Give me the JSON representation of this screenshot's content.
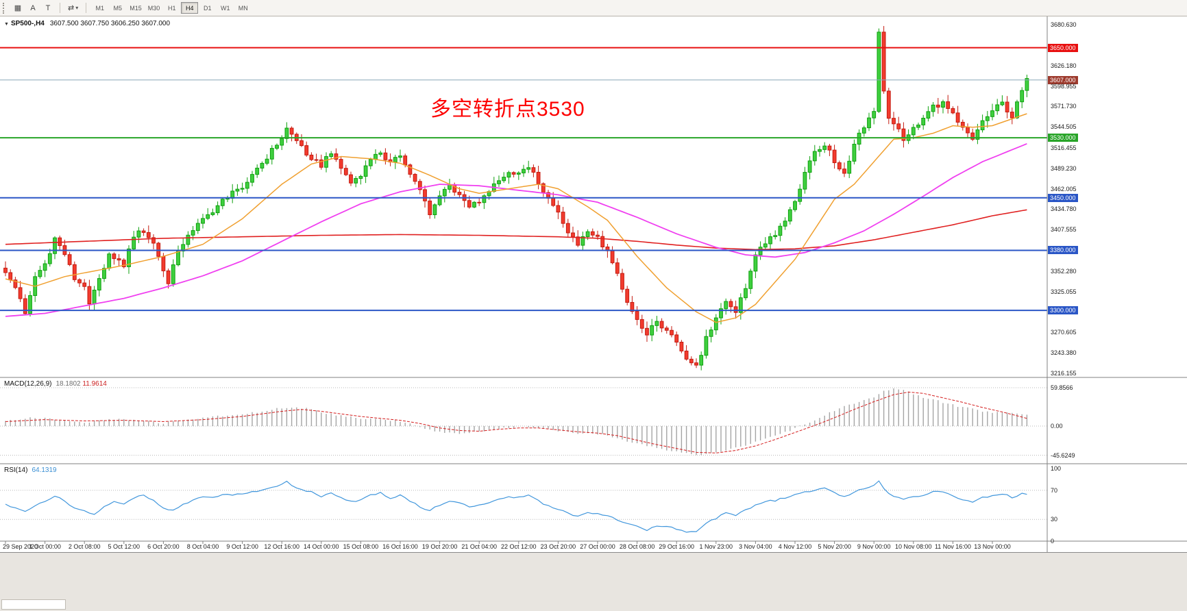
{
  "toolbar": {
    "icons": [
      {
        "name": "chart-window-icon",
        "glyph": "▦"
      },
      {
        "name": "text-tool-icon",
        "glyph": "A"
      },
      {
        "name": "label-tool-icon",
        "glyph": "T"
      },
      {
        "name": "cycles-tool-icon",
        "glyph": "⇄"
      },
      {
        "name": "dropdown-caret-icon",
        "glyph": "▾"
      }
    ],
    "timeframes": [
      "M1",
      "M5",
      "M15",
      "M30",
      "H1",
      "H4",
      "D1",
      "W1",
      "MN"
    ],
    "active_timeframe": "H4"
  },
  "main_chart": {
    "dropdown_glyph": "▼",
    "symbol_period": "SP500-,H4",
    "ohlc": "3607.500 3607.750 3606.250 3607.000",
    "annotation": "多空转折点3530"
  },
  "price_axis": {
    "labels": [
      "3680.630",
      "3626.180",
      "3598.955",
      "3571.730",
      "3544.505",
      "3516.455",
      "3489.230",
      "3462.005",
      "3434.780",
      "3407.555",
      "3352.280",
      "3325.055",
      "3270.605",
      "3243.380",
      "3216.155"
    ]
  },
  "levels": [
    {
      "price": 3650.0,
      "label": "3650.000",
      "color": "#e81010"
    },
    {
      "price": 3530.0,
      "label": "3530.000",
      "color": "#28a428"
    },
    {
      "price": 3450.0,
      "label": "3450.000",
      "color": "#2a56c6"
    },
    {
      "price": 3380.0,
      "label": "3380.000",
      "color": "#2a56c6"
    },
    {
      "price": 3300.0,
      "label": "3300.000",
      "color": "#2a56c6"
    }
  ],
  "current_price_line": {
    "price": 3607.0,
    "label": "3607.000",
    "line_color": "#8aa8b8",
    "badge_color": "#9e3b2e"
  },
  "time_axis": [
    "29 Sep 2020",
    "1 Oct 00:00",
    "2 Oct 08:00",
    "5 Oct 12:00",
    "6 Oct 20:00",
    "8 Oct 04:00",
    "9 Oct 12:00",
    "12 Oct 16:00",
    "14 Oct 00:00",
    "15 Oct 08:00",
    "16 Oct 16:00",
    "19 Oct 20:00",
    "21 Oct 04:00",
    "22 Oct 12:00",
    "23 Oct 20:00",
    "27 Oct 00:00",
    "28 Oct 08:00",
    "29 Oct 16:00",
    "1 Nov 23:00",
    "3 Nov 04:00",
    "4 Nov 12:00",
    "5 Nov 20:00",
    "9 Nov 00:00",
    "10 Nov 08:00",
    "11 Nov 16:00",
    "13 Nov 00:00"
  ],
  "macd": {
    "label": "MACD(12,26,9)",
    "value_main": "18.1802",
    "value_signal": "11.9614",
    "axis": [
      "59.8566",
      "0.00",
      "-45.6249"
    ],
    "axis_values": [
      59.8566,
      0,
      -45.6249
    ]
  },
  "rsi": {
    "label": "RSI(14)",
    "value": "64.1319",
    "axis": [
      "100",
      "70",
      "30",
      "0"
    ],
    "axis_values": [
      100,
      70,
      30,
      0
    ],
    "levels": [
      70,
      30
    ]
  },
  "colors": {
    "up": "#3fcf3f",
    "up_stroke": "#0da00d",
    "down": "#f23b2e",
    "down_stroke": "#c41b10",
    "ma_orange": "#f0a030",
    "ma_magenta": "#f040f0",
    "ma_red": "#e02020",
    "macd_hist": "#a4a4a4",
    "macd_signal": "#d41c1c",
    "rsi_line": "#4096dc",
    "panel_border": "#808080"
  },
  "chart_data": {
    "type": "candlestick+indicators",
    "symbol": "SP500-",
    "period": "H4",
    "bars": 208,
    "price_range": [
      3216.155,
      3680.63
    ],
    "close_waypoints": [
      [
        0,
        3352
      ],
      [
        2,
        3330
      ],
      [
        4,
        3298
      ],
      [
        6,
        3345
      ],
      [
        8,
        3362
      ],
      [
        10,
        3396
      ],
      [
        12,
        3375
      ],
      [
        14,
        3342
      ],
      [
        16,
        3330
      ],
      [
        17,
        3312
      ],
      [
        19,
        3345
      ],
      [
        21,
        3372
      ],
      [
        24,
        3360
      ],
      [
        26,
        3400
      ],
      [
        28,
        3406
      ],
      [
        30,
        3390
      ],
      [
        32,
        3352
      ],
      [
        33,
        3336
      ],
      [
        35,
        3380
      ],
      [
        37,
        3402
      ],
      [
        40,
        3420
      ],
      [
        44,
        3446
      ],
      [
        48,
        3466
      ],
      [
        52,
        3496
      ],
      [
        56,
        3530
      ],
      [
        57,
        3542
      ],
      [
        59,
        3526
      ],
      [
        61,
        3510
      ],
      [
        64,
        3492
      ],
      [
        66,
        3512
      ],
      [
        68,
        3490
      ],
      [
        70,
        3470
      ],
      [
        72,
        3482
      ],
      [
        74,
        3500
      ],
      [
        76,
        3512
      ],
      [
        78,
        3496
      ],
      [
        80,
        3506
      ],
      [
        82,
        3480
      ],
      [
        84,
        3460
      ],
      [
        86,
        3430
      ],
      [
        88,
        3452
      ],
      [
        90,
        3466
      ],
      [
        92,
        3455
      ],
      [
        94,
        3440
      ],
      [
        96,
        3446
      ],
      [
        98,
        3460
      ],
      [
        100,
        3476
      ],
      [
        104,
        3486
      ],
      [
        106,
        3492
      ],
      [
        108,
        3470
      ],
      [
        110,
        3450
      ],
      [
        112,
        3430
      ],
      [
        114,
        3400
      ],
      [
        116,
        3390
      ],
      [
        118,
        3402
      ],
      [
        120,
        3396
      ],
      [
        122,
        3380
      ],
      [
        124,
        3350
      ],
      [
        126,
        3310
      ],
      [
        128,
        3290
      ],
      [
        130,
        3268
      ],
      [
        132,
        3286
      ],
      [
        134,
        3270
      ],
      [
        136,
        3258
      ],
      [
        138,
        3234
      ],
      [
        140,
        3224
      ],
      [
        142,
        3262
      ],
      [
        144,
        3292
      ],
      [
        146,
        3312
      ],
      [
        148,
        3300
      ],
      [
        150,
        3332
      ],
      [
        152,
        3372
      ],
      [
        154,
        3392
      ],
      [
        156,
        3402
      ],
      [
        158,
        3422
      ],
      [
        160,
        3446
      ],
      [
        162,
        3482
      ],
      [
        164,
        3512
      ],
      [
        166,
        3522
      ],
      [
        168,
        3500
      ],
      [
        170,
        3480
      ],
      [
        172,
        3522
      ],
      [
        174,
        3546
      ],
      [
        176,
        3562
      ],
      [
        177,
        3672
      ],
      [
        178,
        3592
      ],
      [
        179,
        3554
      ],
      [
        181,
        3540
      ],
      [
        182,
        3528
      ],
      [
        184,
        3542
      ],
      [
        186,
        3556
      ],
      [
        188,
        3572
      ],
      [
        190,
        3576
      ],
      [
        192,
        3560
      ],
      [
        194,
        3546
      ],
      [
        196,
        3530
      ],
      [
        198,
        3552
      ],
      [
        200,
        3566
      ],
      [
        202,
        3576
      ],
      [
        204,
        3558
      ],
      [
        206,
        3592
      ],
      [
        207,
        3606
      ]
    ],
    "ma_orange_waypoints": [
      [
        0,
        3342
      ],
      [
        6,
        3332
      ],
      [
        12,
        3345
      ],
      [
        16,
        3350
      ],
      [
        24,
        3360
      ],
      [
        32,
        3372
      ],
      [
        40,
        3388
      ],
      [
        48,
        3422
      ],
      [
        56,
        3468
      ],
      [
        62,
        3495
      ],
      [
        68,
        3505
      ],
      [
        74,
        3502
      ],
      [
        80,
        3496
      ],
      [
        86,
        3480
      ],
      [
        92,
        3462
      ],
      [
        96,
        3456
      ],
      [
        102,
        3462
      ],
      [
        108,
        3468
      ],
      [
        112,
        3462
      ],
      [
        118,
        3438
      ],
      [
        122,
        3420
      ],
      [
        128,
        3372
      ],
      [
        134,
        3330
      ],
      [
        140,
        3298
      ],
      [
        144,
        3284
      ],
      [
        148,
        3290
      ],
      [
        152,
        3308
      ],
      [
        156,
        3338
      ],
      [
        160,
        3368
      ],
      [
        164,
        3408
      ],
      [
        168,
        3448
      ],
      [
        172,
        3468
      ],
      [
        176,
        3498
      ],
      [
        180,
        3528
      ],
      [
        184,
        3530
      ],
      [
        188,
        3536
      ],
      [
        192,
        3546
      ],
      [
        196,
        3544
      ],
      [
        200,
        3546
      ],
      [
        207,
        3562
      ]
    ],
    "ma_magenta_waypoints": [
      [
        0,
        3292
      ],
      [
        8,
        3296
      ],
      [
        16,
        3306
      ],
      [
        24,
        3316
      ],
      [
        32,
        3330
      ],
      [
        40,
        3346
      ],
      [
        48,
        3366
      ],
      [
        56,
        3392
      ],
      [
        64,
        3418
      ],
      [
        72,
        3442
      ],
      [
        80,
        3458
      ],
      [
        88,
        3468
      ],
      [
        96,
        3466
      ],
      [
        104,
        3460
      ],
      [
        112,
        3454
      ],
      [
        120,
        3444
      ],
      [
        128,
        3424
      ],
      [
        136,
        3402
      ],
      [
        144,
        3384
      ],
      [
        150,
        3374
      ],
      [
        156,
        3371
      ],
      [
        162,
        3377
      ],
      [
        168,
        3390
      ],
      [
        174,
        3406
      ],
      [
        180,
        3428
      ],
      [
        186,
        3452
      ],
      [
        192,
        3477
      ],
      [
        198,
        3498
      ],
      [
        204,
        3514
      ],
      [
        207,
        3522
      ]
    ],
    "ma_red_waypoints": [
      [
        0,
        3388
      ],
      [
        16,
        3392
      ],
      [
        32,
        3396
      ],
      [
        48,
        3398
      ],
      [
        64,
        3400
      ],
      [
        80,
        3401
      ],
      [
        96,
        3400
      ],
      [
        112,
        3398
      ],
      [
        120,
        3396
      ],
      [
        128,
        3392
      ],
      [
        136,
        3387
      ],
      [
        144,
        3383
      ],
      [
        152,
        3381
      ],
      [
        160,
        3382
      ],
      [
        168,
        3386
      ],
      [
        176,
        3394
      ],
      [
        184,
        3404
      ],
      [
        192,
        3414
      ],
      [
        200,
        3426
      ],
      [
        207,
        3434
      ]
    ],
    "macd_waypoints": [
      [
        0,
        9
      ],
      [
        4,
        12
      ],
      [
        8,
        13
      ],
      [
        12,
        8
      ],
      [
        16,
        5
      ],
      [
        20,
        9
      ],
      [
        24,
        11
      ],
      [
        28,
        8
      ],
      [
        32,
        5
      ],
      [
        36,
        9
      ],
      [
        40,
        13
      ],
      [
        44,
        16
      ],
      [
        48,
        19
      ],
      [
        52,
        23
      ],
      [
        56,
        28
      ],
      [
        58,
        30
      ],
      [
        62,
        26
      ],
      [
        64,
        21
      ],
      [
        68,
        16
      ],
      [
        72,
        12
      ],
      [
        76,
        10
      ],
      [
        80,
        8
      ],
      [
        83,
        2
      ],
      [
        86,
        -6
      ],
      [
        88,
        -9
      ],
      [
        92,
        -11
      ],
      [
        96,
        -8
      ],
      [
        100,
        -4
      ],
      [
        104,
        -1
      ],
      [
        108,
        -3
      ],
      [
        112,
        -8
      ],
      [
        116,
        -12
      ],
      [
        120,
        -12
      ],
      [
        124,
        -18
      ],
      [
        128,
        -28
      ],
      [
        132,
        -34
      ],
      [
        136,
        -40
      ],
      [
        140,
        -45
      ],
      [
        144,
        -41
      ],
      [
        148,
        -34
      ],
      [
        152,
        -25
      ],
      [
        156,
        -14
      ],
      [
        160,
        -4
      ],
      [
        164,
        10
      ],
      [
        168,
        24
      ],
      [
        172,
        36
      ],
      [
        176,
        46
      ],
      [
        178,
        54
      ],
      [
        180,
        59
      ],
      [
        182,
        56
      ],
      [
        184,
        49
      ],
      [
        188,
        41
      ],
      [
        192,
        33
      ],
      [
        196,
        26
      ],
      [
        200,
        21
      ],
      [
        204,
        20
      ],
      [
        207,
        18.2
      ]
    ],
    "macd_signal_waypoints": [
      [
        0,
        7
      ],
      [
        8,
        10
      ],
      [
        16,
        8
      ],
      [
        24,
        9
      ],
      [
        32,
        7
      ],
      [
        40,
        10
      ],
      [
        48,
        15
      ],
      [
        56,
        23
      ],
      [
        60,
        26
      ],
      [
        64,
        23
      ],
      [
        72,
        15
      ],
      [
        80,
        9
      ],
      [
        84,
        4
      ],
      [
        88,
        -3
      ],
      [
        92,
        -7
      ],
      [
        96,
        -8
      ],
      [
        100,
        -5
      ],
      [
        104,
        -3
      ],
      [
        108,
        -3
      ],
      [
        112,
        -6
      ],
      [
        116,
        -9
      ],
      [
        120,
        -11
      ],
      [
        124,
        -15
      ],
      [
        128,
        -22
      ],
      [
        132,
        -29
      ],
      [
        136,
        -35
      ],
      [
        140,
        -41
      ],
      [
        144,
        -42
      ],
      [
        148,
        -38
      ],
      [
        152,
        -31
      ],
      [
        156,
        -21
      ],
      [
        160,
        -10
      ],
      [
        164,
        1
      ],
      [
        168,
        13
      ],
      [
        172,
        26
      ],
      [
        176,
        38
      ],
      [
        180,
        49
      ],
      [
        183,
        53
      ],
      [
        186,
        51
      ],
      [
        190,
        44
      ],
      [
        194,
        37
      ],
      [
        198,
        29
      ],
      [
        202,
        22
      ],
      [
        207,
        12
      ]
    ],
    "rsi_waypoints": [
      [
        0,
        52
      ],
      [
        2,
        45
      ],
      [
        4,
        40
      ],
      [
        6,
        50
      ],
      [
        8,
        56
      ],
      [
        10,
        62
      ],
      [
        12,
        55
      ],
      [
        14,
        45
      ],
      [
        16,
        42
      ],
      [
        18,
        38
      ],
      [
        20,
        48
      ],
      [
        22,
        55
      ],
      [
        24,
        52
      ],
      [
        26,
        60
      ],
      [
        28,
        62
      ],
      [
        30,
        55
      ],
      [
        32,
        45
      ],
      [
        34,
        42
      ],
      [
        36,
        52
      ],
      [
        40,
        60
      ],
      [
        44,
        63
      ],
      [
        48,
        66
      ],
      [
        52,
        70
      ],
      [
        56,
        78
      ],
      [
        57,
        82
      ],
      [
        59,
        74
      ],
      [
        61,
        70
      ],
      [
        63,
        65
      ],
      [
        64,
        62
      ],
      [
        66,
        68
      ],
      [
        68,
        60
      ],
      [
        70,
        54
      ],
      [
        72,
        58
      ],
      [
        74,
        64
      ],
      [
        76,
        66
      ],
      [
        78,
        60
      ],
      [
        80,
        63
      ],
      [
        82,
        55
      ],
      [
        84,
        48
      ],
      [
        86,
        42
      ],
      [
        88,
        50
      ],
      [
        90,
        55
      ],
      [
        92,
        52
      ],
      [
        94,
        47
      ],
      [
        96,
        49
      ],
      [
        98,
        54
      ],
      [
        100,
        58
      ],
      [
        102,
        60
      ],
      [
        104,
        61
      ],
      [
        106,
        63
      ],
      [
        108,
        55
      ],
      [
        110,
        48
      ],
      [
        112,
        44
      ],
      [
        114,
        38
      ],
      [
        116,
        35
      ],
      [
        118,
        40
      ],
      [
        120,
        38
      ],
      [
        122,
        35
      ],
      [
        124,
        30
      ],
      [
        126,
        24
      ],
      [
        128,
        20
      ],
      [
        130,
        15
      ],
      [
        132,
        22
      ],
      [
        134,
        20
      ],
      [
        136,
        17
      ],
      [
        138,
        13
      ],
      [
        140,
        12
      ],
      [
        142,
        25
      ],
      [
        144,
        32
      ],
      [
        146,
        38
      ],
      [
        148,
        35
      ],
      [
        150,
        42
      ],
      [
        152,
        50
      ],
      [
        154,
        54
      ],
      [
        156,
        56
      ],
      [
        158,
        60
      ],
      [
        160,
        63
      ],
      [
        162,
        68
      ],
      [
        164,
        71
      ],
      [
        166,
        73
      ],
      [
        168,
        67
      ],
      [
        170,
        61
      ],
      [
        172,
        68
      ],
      [
        174,
        73
      ],
      [
        176,
        76
      ],
      [
        177,
        82
      ],
      [
        179,
        66
      ],
      [
        180,
        62
      ],
      [
        182,
        58
      ],
      [
        184,
        61
      ],
      [
        186,
        64
      ],
      [
        188,
        67
      ],
      [
        190,
        68
      ],
      [
        192,
        63
      ],
      [
        194,
        58
      ],
      [
        196,
        53
      ],
      [
        198,
        60
      ],
      [
        200,
        63
      ],
      [
        202,
        65
      ],
      [
        204,
        60
      ],
      [
        206,
        66
      ],
      [
        207,
        64.1
      ]
    ]
  }
}
